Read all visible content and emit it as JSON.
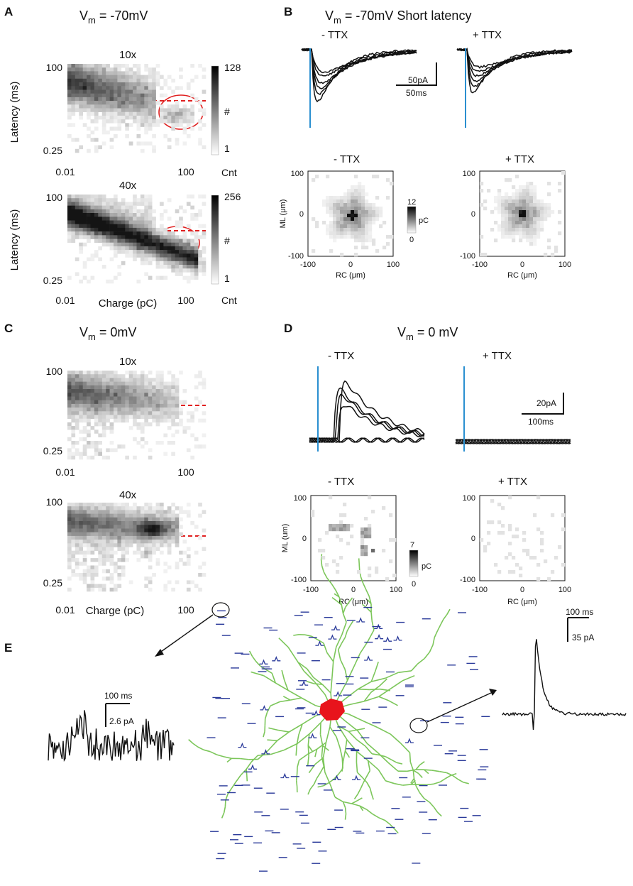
{
  "panels": {
    "A": {
      "label": "A",
      "title_prefix": "V",
      "title_sub": "m",
      "title_suffix": " = -70mV",
      "plots": [
        {
          "subtitle": "10x",
          "cbar_max": "128",
          "cbar_min": "1",
          "cbar_mid": "#",
          "cbar_unit": "Cnt"
        },
        {
          "subtitle": "40x",
          "cbar_max": "256",
          "cbar_min": "1",
          "cbar_mid": "#",
          "cbar_unit": "Cnt"
        }
      ],
      "ylabel": "Latency (ms)",
      "xlabel": "Charge (pC)",
      "yticks": [
        "100",
        "0.25"
      ],
      "xticks": [
        "0.01",
        "100"
      ]
    },
    "B": {
      "label": "B",
      "title_prefix": "V",
      "title_sub": "m",
      "title_suffix": " = -70mV Short latency",
      "traces": {
        "minus": "- TTX",
        "plus": "+ TTX",
        "scale_amp": "50pA",
        "scale_time": "50ms"
      },
      "maps": {
        "minus": "- TTX",
        "plus": "+ TTX",
        "ylabel": "ML (μm)",
        "xlabel": "RC (μm)",
        "ticks": [
          "100",
          "0",
          "-100"
        ],
        "xticks": [
          "-100",
          "0",
          "100"
        ],
        "cbar_max": "12",
        "cbar_min": "0",
        "cbar_unit": "pC"
      }
    },
    "C": {
      "label": "C",
      "title_prefix": "V",
      "title_sub": "m",
      "title_suffix": " = 0mV",
      "plots": [
        {
          "subtitle": "10x"
        },
        {
          "subtitle": "40x"
        }
      ],
      "xlabel": "Charge (pC)",
      "yticks": [
        "100",
        "0.25"
      ],
      "xticks": [
        "0.01",
        "100"
      ]
    },
    "D": {
      "label": "D",
      "title_prefix": "V",
      "title_sub": "m",
      "title_suffix": " = 0 mV",
      "traces": {
        "minus": "- TTX",
        "plus": "+ TTX",
        "scale_amp": "20pA",
        "scale_time": "100ms"
      },
      "maps": {
        "minus": "- TTX",
        "plus": "+ TTX",
        "ylabel": "ML (um)",
        "xlabel": "RC (μm)",
        "ticks": [
          "100",
          "0",
          "-100"
        ],
        "xticks": [
          "-100",
          "0",
          "100"
        ],
        "cbar_max": "7",
        "cbar_min": "0",
        "cbar_unit": "pC"
      }
    },
    "E": {
      "label": "E",
      "left_scale_time": "100 ms",
      "left_scale_amp": "2.6 pA",
      "right_scale_time": "100 ms",
      "right_scale_amp": "35 pA"
    }
  },
  "colors": {
    "stim": "#2a8fd0",
    "threshold": "#e02020",
    "circle": "#e02020",
    "dendrite": "#7cc65a",
    "soma": "#e8141c",
    "trace_dash": "#2a3a9a",
    "ink": "#111111"
  }
}
